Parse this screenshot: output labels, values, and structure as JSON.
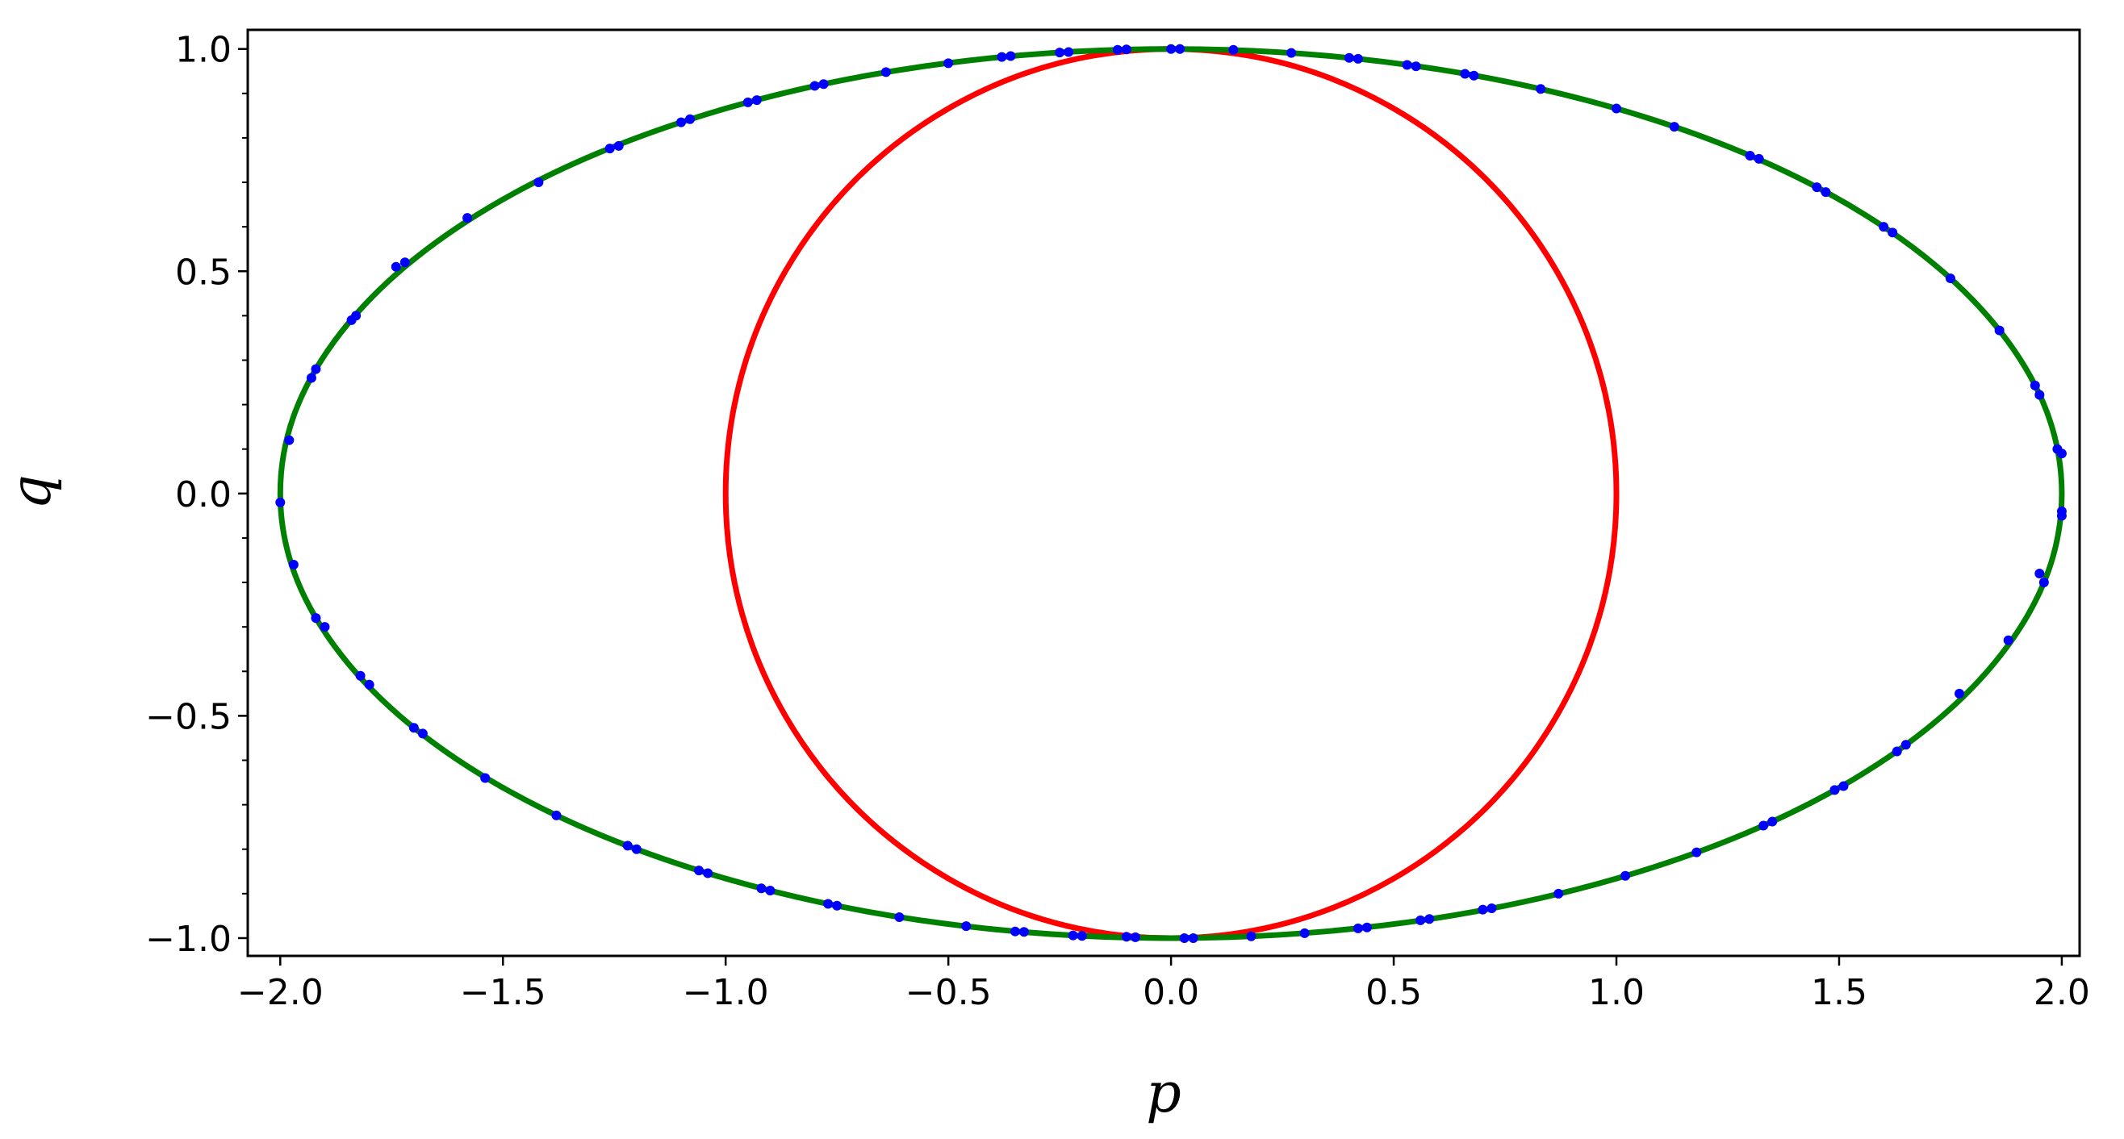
{
  "chart_data": {
    "type": "scatter",
    "x_label": "p",
    "y_label": "q",
    "xlim": [
      -2.073,
      2.04
    ],
    "ylim": [
      -1.04,
      1.043
    ],
    "xticks": [
      {
        "value": -2,
        "label": "−2.0"
      },
      {
        "value": -1.5,
        "label": "−1.5"
      },
      {
        "value": -1,
        "label": "−1.0"
      },
      {
        "value": -0.5,
        "label": "−0.5"
      },
      {
        "value": 0,
        "label": "0.0"
      },
      {
        "value": 0.5,
        "label": "0.5"
      },
      {
        "value": 1,
        "label": "1.0"
      },
      {
        "value": 1.5,
        "label": "1.5"
      },
      {
        "value": 2,
        "label": "2.0"
      }
    ],
    "yticks": [
      {
        "value": -1,
        "label": "−1.0"
      },
      {
        "value": -0.5,
        "label": "−0.5"
      },
      {
        "value": 0,
        "label": "0.0"
      },
      {
        "value": 0.5,
        "label": "0.5"
      },
      {
        "value": 1,
        "label": "1.0"
      }
    ],
    "yminorticks": [
      -0.9,
      -0.8,
      -0.7,
      -0.6,
      -0.4,
      -0.3,
      -0.2,
      -0.1,
      0.1,
      0.2,
      0.3,
      0.4,
      0.6,
      0.7,
      0.8,
      0.9
    ],
    "series": [
      {
        "mode": "line",
        "color": "#ff0000",
        "x": [
          1,
          0.985,
          0.94,
          0.866,
          0.766,
          0.643,
          0.5,
          0.342,
          0.174,
          0,
          -0.174,
          -0.342,
          -0.5,
          -0.643,
          -0.766,
          -0.866,
          -0.94,
          -0.985,
          -1,
          -0.985,
          -0.94,
          -0.866,
          -0.766,
          -0.643,
          -0.5,
          -0.342,
          -0.174,
          0,
          0.174,
          0.342,
          0.5,
          0.643,
          0.766,
          0.866,
          0.94,
          0.985,
          1
        ],
        "y": [
          0,
          0.174,
          0.342,
          0.5,
          0.643,
          0.766,
          0.866,
          0.94,
          0.985,
          1,
          0.985,
          0.94,
          0.866,
          0.766,
          0.643,
          0.5,
          0.342,
          0.174,
          0,
          -0.174,
          -0.342,
          -0.5,
          -0.643,
          -0.766,
          -0.866,
          -0.94,
          -0.985,
          -1,
          -0.985,
          -0.94,
          -0.866,
          -0.766,
          -0.643,
          -0.5,
          -0.342,
          -0.174,
          0
        ]
      },
      {
        "mode": "line",
        "color": "#008000",
        "x": [
          2,
          1.97,
          1.879,
          1.732,
          1.532,
          1.286,
          1,
          0.684,
          0.347,
          0,
          -0.347,
          -0.684,
          -1,
          -1.286,
          -1.532,
          -1.732,
          -1.879,
          -1.97,
          -2,
          -1.97,
          -1.879,
          -1.732,
          -1.532,
          -1.286,
          -1,
          -0.684,
          -0.347,
          0,
          0.347,
          0.684,
          1,
          1.286,
          1.532,
          1.732,
          1.879,
          1.97,
          2
        ],
        "y": [
          0,
          0.174,
          0.342,
          0.5,
          0.643,
          0.766,
          0.866,
          0.94,
          0.985,
          1,
          0.985,
          0.94,
          0.866,
          0.766,
          0.643,
          0.5,
          0.342,
          0.174,
          0,
          -0.174,
          -0.342,
          -0.5,
          -0.643,
          -0.766,
          -0.866,
          -0.94,
          -0.985,
          -1,
          -0.985,
          -0.94,
          -0.866,
          -0.766,
          -0.643,
          -0.5,
          -0.342,
          -0.174,
          0
        ]
      },
      {
        "mode": "markers",
        "color": "#0000ff",
        "x": [
          0,
          0.02,
          0.14,
          0.27,
          0.4,
          0.42,
          0.53,
          0.55,
          0.66,
          0.68,
          0.83,
          1.0,
          1.13,
          1.3,
          1.32,
          1.45,
          1.47,
          1.6,
          1.62,
          1.75,
          1.86,
          1.94,
          1.95,
          1.99,
          2.0,
          2.0,
          2.0,
          1.96,
          1.95,
          1.88,
          1.77,
          1.65,
          1.63,
          1.51,
          1.49,
          1.35,
          1.33,
          1.18,
          1.02,
          0.87,
          0.72,
          0.7,
          0.58,
          0.56,
          0.44,
          0.42,
          0.3,
          0.18,
          0.05,
          0.03,
          -0.08,
          -0.1,
          -0.2,
          -0.22,
          -0.33,
          -0.35,
          -0.46,
          -0.61,
          -0.75,
          -0.77,
          -0.9,
          -0.92,
          -1.04,
          -1.06,
          -1.2,
          -1.22,
          -1.38,
          -1.54,
          -1.68,
          -1.7,
          -1.8,
          -1.82,
          -1.9,
          -1.92,
          -1.97,
          -2.0,
          -1.98,
          -1.93,
          -1.92,
          -1.84,
          -1.83,
          -1.74,
          -1.72,
          -1.58,
          -1.42,
          -1.26,
          -1.24,
          -1.1,
          -1.08,
          -0.95,
          -0.93,
          -0.8,
          -0.78,
          -0.64,
          -0.5,
          -0.38,
          -0.36,
          -0.25,
          -0.23,
          -0.12,
          -0.1
        ],
        "y": [
          1.0,
          1.0,
          0.998,
          0.991,
          0.98,
          0.978,
          0.964,
          0.961,
          0.944,
          0.94,
          0.91,
          0.866,
          0.825,
          0.76,
          0.753,
          0.689,
          0.678,
          0.6,
          0.587,
          0.484,
          0.367,
          0.243,
          0.222,
          0.1,
          0.09,
          -0.05,
          -0.04,
          -0.2,
          -0.18,
          -0.33,
          -0.45,
          -0.565,
          -0.58,
          -0.658,
          -0.667,
          -0.738,
          -0.747,
          -0.807,
          -0.86,
          -0.9,
          -0.933,
          -0.936,
          -0.957,
          -0.96,
          -0.976,
          -0.978,
          -0.989,
          -0.996,
          -1.0,
          -1.0,
          -0.998,
          -0.997,
          -0.995,
          -0.994,
          -0.986,
          -0.985,
          -0.973,
          -0.953,
          -0.927,
          -0.923,
          -0.893,
          -0.888,
          -0.854,
          -0.848,
          -0.8,
          -0.792,
          -0.724,
          -0.64,
          -0.54,
          -0.527,
          -0.43,
          -0.41,
          -0.3,
          -0.28,
          -0.16,
          -0.02,
          0.12,
          0.26,
          0.28,
          0.39,
          0.4,
          0.51,
          0.52,
          0.62,
          0.7,
          0.776,
          0.782,
          0.835,
          0.842,
          0.88,
          0.885,
          0.917,
          0.921,
          0.948,
          0.968,
          0.982,
          0.984,
          0.992,
          0.993,
          0.998,
          0.999
        ]
      }
    ]
  }
}
